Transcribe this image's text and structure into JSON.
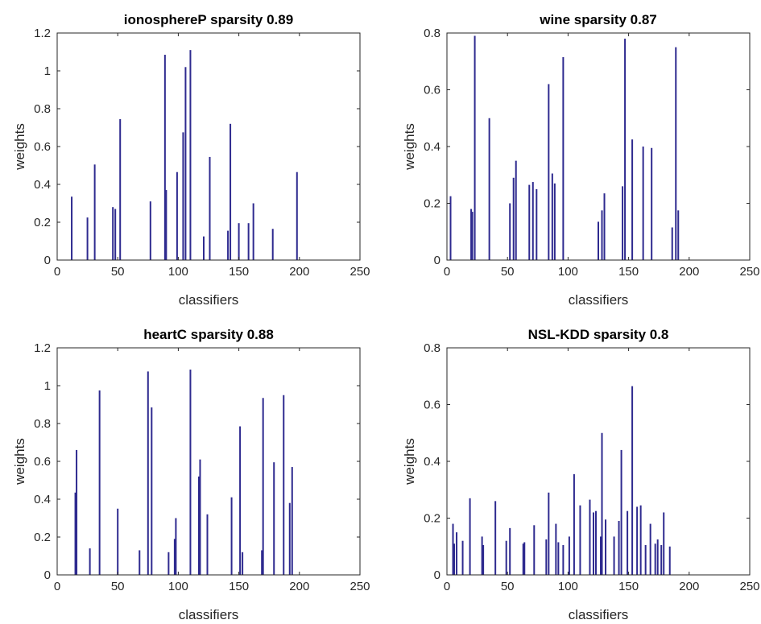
{
  "figure": {
    "background": "#ffffff"
  },
  "chart_data": [
    {
      "type": "bar",
      "title": "ionosphereP sparsity 0.89",
      "xlabel": "classifiers",
      "ylabel": "weights",
      "xlim": [
        0,
        250
      ],
      "ylim": [
        0,
        1.2
      ],
      "xticks": [
        0,
        50,
        100,
        150,
        200,
        250
      ],
      "yticks": [
        0,
        0.2,
        0.4,
        0.6,
        0.8,
        1,
        1.2
      ],
      "grid": false,
      "color": "#2E2A8F",
      "x": [
        12,
        25,
        31,
        46,
        48,
        52,
        77,
        89,
        90,
        99,
        104,
        106,
        110,
        121,
        126,
        141,
        143,
        150,
        158,
        162,
        178,
        198
      ],
      "values": [
        0.335,
        0.225,
        0.505,
        0.28,
        0.27,
        0.745,
        0.31,
        1.085,
        0.37,
        0.465,
        0.675,
        1.02,
        1.11,
        0.125,
        0.545,
        0.155,
        0.72,
        0.195,
        0.195,
        0.3,
        0.165,
        0.465
      ]
    },
    {
      "type": "bar",
      "title": "wine sparsity 0.87",
      "xlabel": "classifiers",
      "ylabel": "weights",
      "xlim": [
        0,
        250
      ],
      "ylim": [
        0,
        0.8
      ],
      "xticks": [
        0,
        50,
        100,
        150,
        200,
        250
      ],
      "yticks": [
        0,
        0.2,
        0.4,
        0.6,
        0.8
      ],
      "grid": false,
      "color": "#2E2A8F",
      "x": [
        3,
        20,
        21,
        23,
        35,
        52,
        55,
        57,
        68,
        71,
        74,
        84,
        87,
        89,
        96,
        125,
        128,
        130,
        145,
        147,
        153,
        162,
        169,
        186,
        189,
        191
      ],
      "values": [
        0.225,
        0.18,
        0.17,
        0.79,
        0.5,
        0.2,
        0.29,
        0.35,
        0.265,
        0.275,
        0.25,
        0.62,
        0.305,
        0.27,
        0.715,
        0.135,
        0.175,
        0.235,
        0.26,
        0.78,
        0.425,
        0.4,
        0.395,
        0.115,
        0.75,
        0.175
      ]
    },
    {
      "type": "bar",
      "title": "heartC sparsity 0.88",
      "xlabel": "classifiers",
      "ylabel": "weights",
      "xlim": [
        0,
        250
      ],
      "ylim": [
        0,
        1.2
      ],
      "xticks": [
        0,
        50,
        100,
        150,
        200,
        250
      ],
      "yticks": [
        0,
        0.2,
        0.4,
        0.6,
        0.8,
        1,
        1.2
      ],
      "grid": false,
      "color": "#2E2A8F",
      "x": [
        15,
        16,
        27,
        35,
        50,
        68,
        75,
        78,
        92,
        97,
        98,
        110,
        117,
        118,
        124,
        144,
        151,
        153,
        169,
        170,
        179,
        187,
        192,
        194
      ],
      "values": [
        0.435,
        0.66,
        0.14,
        0.975,
        0.35,
        0.13,
        1.075,
        0.885,
        0.12,
        0.19,
        0.3,
        1.085,
        0.52,
        0.61,
        0.32,
        0.41,
        0.785,
        0.12,
        0.13,
        0.935,
        0.595,
        0.95,
        0.38,
        0.57
      ]
    },
    {
      "type": "bar",
      "title": "NSL-KDD sparsity 0.8",
      "xlabel": "classifiers",
      "ylabel": "weights",
      "xlim": [
        0,
        250
      ],
      "ylim": [
        0,
        0.8
      ],
      "xticks": [
        0,
        50,
        100,
        150,
        200,
        250
      ],
      "yticks": [
        0,
        0.2,
        0.4,
        0.6,
        0.8
      ],
      "grid": false,
      "color": "#2E2A8F",
      "x": [
        5,
        6,
        8,
        13,
        19,
        29,
        30,
        40,
        49,
        52,
        63,
        64,
        72,
        82,
        84,
        90,
        92,
        96,
        101,
        105,
        110,
        118,
        121,
        123,
        127,
        128,
        131,
        138,
        142,
        144,
        149,
        153,
        157,
        160,
        164,
        168,
        172,
        174,
        177,
        179,
        184
      ],
      "values": [
        0.18,
        0.11,
        0.15,
        0.12,
        0.27,
        0.135,
        0.105,
        0.26,
        0.12,
        0.165,
        0.11,
        0.115,
        0.175,
        0.125,
        0.29,
        0.18,
        0.115,
        0.105,
        0.135,
        0.355,
        0.245,
        0.265,
        0.22,
        0.225,
        0.135,
        0.5,
        0.195,
        0.135,
        0.19,
        0.44,
        0.225,
        0.665,
        0.24,
        0.245,
        0.105,
        0.18,
        0.11,
        0.125,
        0.105,
        0.22,
        0.1
      ]
    }
  ]
}
